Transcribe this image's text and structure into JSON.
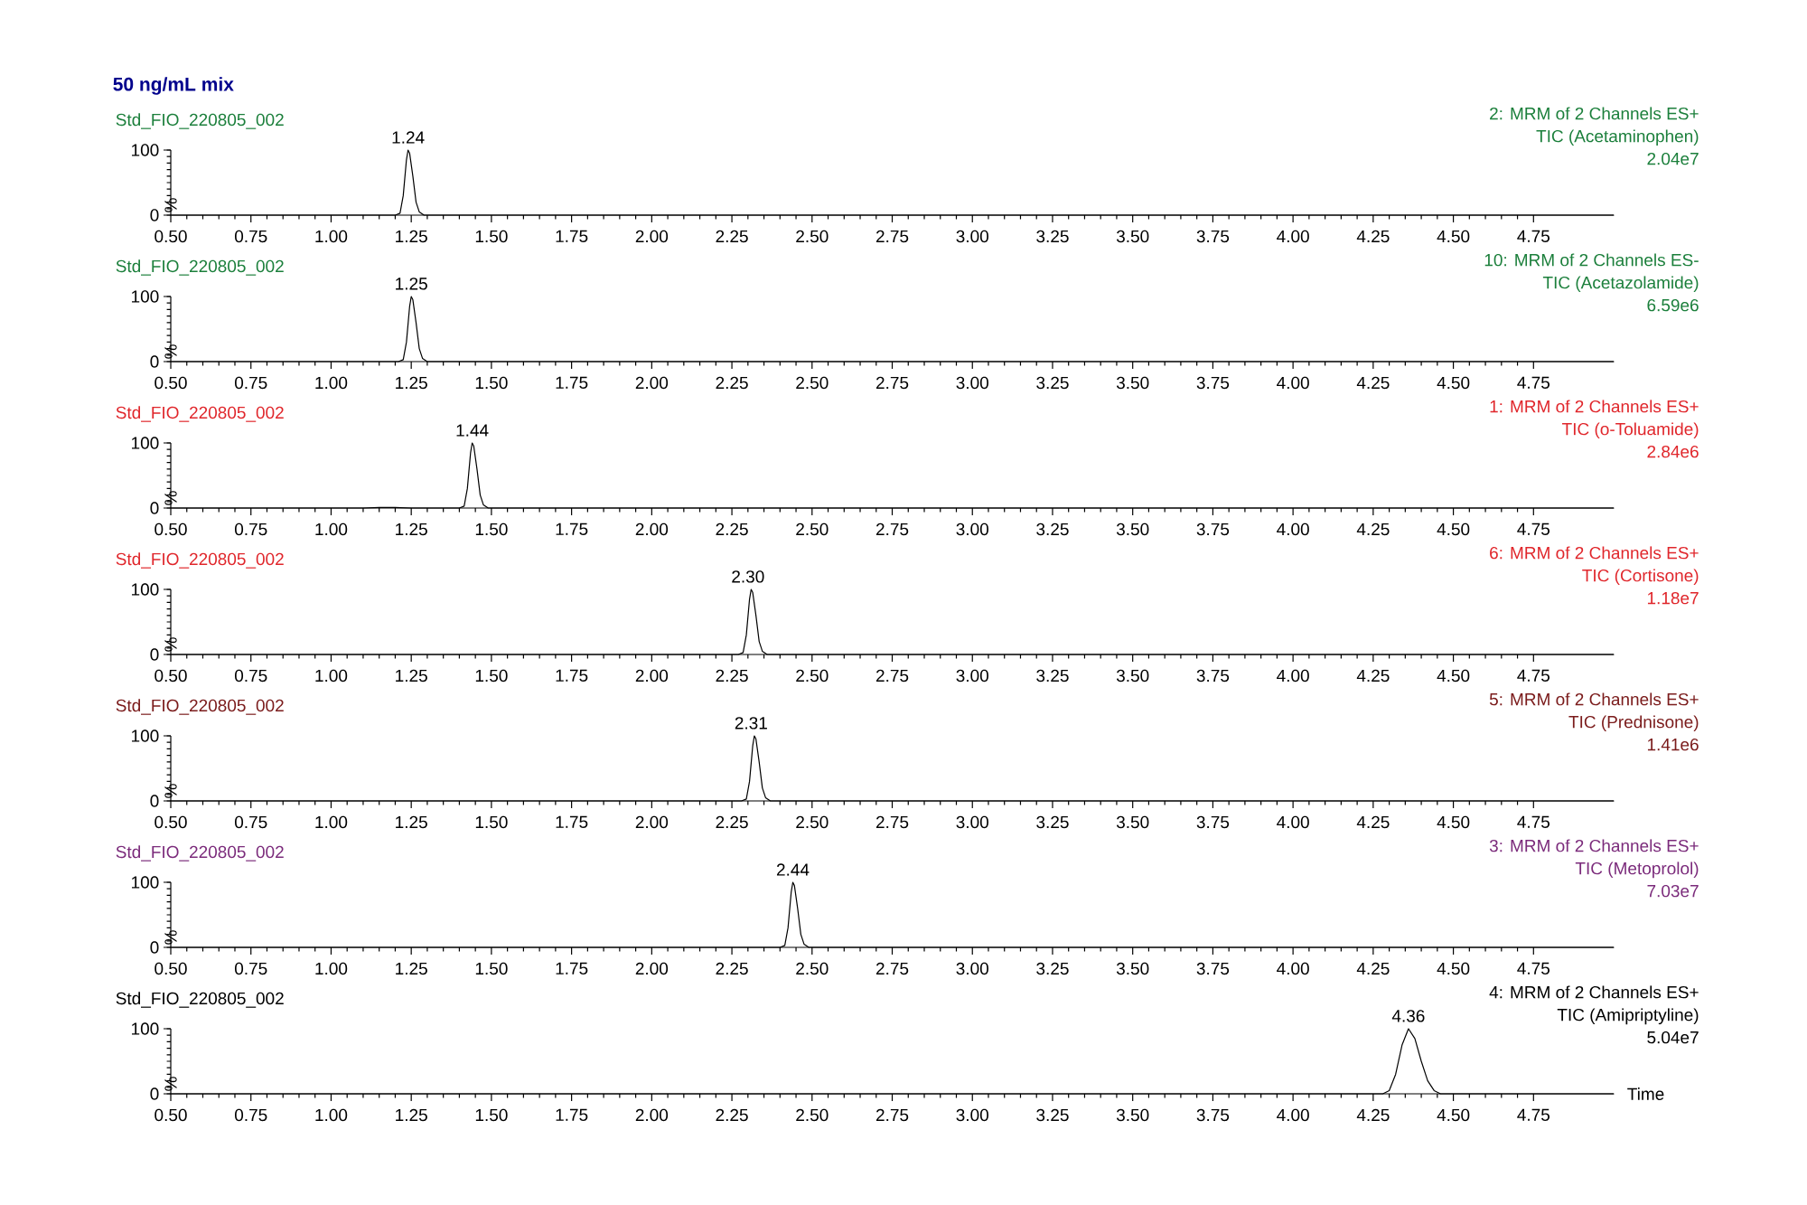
{
  "chart_data": [
    {
      "type": "line",
      "title": "50 ng/mL mix",
      "subtitle": "Std_FIO_220805_002",
      "ylabel": "%",
      "annotations": [
        "2: MRM of 2 Channels ES+",
        "TIC (Acetaminophen)",
        "2.04e7",
        {
          "text": "1.24",
          "x": 1.24,
          "y": 100
        }
      ],
      "x": [
        0.5,
        1.2,
        1.215,
        1.225,
        1.235,
        1.24,
        1.245,
        1.255,
        1.265,
        1.275,
        1.29,
        5.0
      ],
      "values": [
        0,
        0,
        3,
        30,
        85,
        100,
        95,
        60,
        20,
        5,
        0,
        0
      ],
      "color": "#000000",
      "marker": "none",
      "xlim": [
        0.5,
        5.0
      ],
      "ylim": [
        0,
        100
      ],
      "xticks": [
        {
          "value": 0.5,
          "label": "0.50"
        },
        {
          "value": 0.75,
          "label": "0.75"
        },
        {
          "value": 1.0,
          "label": "1.00"
        },
        {
          "value": 1.25,
          "label": "1.25"
        },
        {
          "value": 1.5,
          "label": "1.50"
        },
        {
          "value": 1.75,
          "label": "1.75"
        },
        {
          "value": 2.0,
          "label": "2.00"
        },
        {
          "value": 2.25,
          "label": "2.25"
        },
        {
          "value": 2.5,
          "label": "2.50"
        },
        {
          "value": 2.75,
          "label": "2.75"
        },
        {
          "value": 3.0,
          "label": "3.00"
        },
        {
          "value": 3.25,
          "label": "3.25"
        },
        {
          "value": 3.5,
          "label": "3.50"
        },
        {
          "value": 3.75,
          "label": "3.75"
        },
        {
          "value": 4.0,
          "label": "4.00"
        },
        {
          "value": 4.25,
          "label": "4.25"
        },
        {
          "value": 4.5,
          "label": "4.50"
        },
        {
          "value": 4.75,
          "label": "4.75"
        }
      ],
      "yticks": [
        0,
        100
      ]
    },
    {
      "type": "line",
      "subtitle": "Std_FIO_220805_002",
      "ylabel": "%",
      "annotations": [
        "10: MRM of 2 Channels ES-",
        "TIC (Acetazolamide)",
        "6.59e6",
        {
          "text": "1.25",
          "x": 1.25,
          "y": 100
        }
      ],
      "x": [
        0.5,
        1.21,
        1.225,
        1.235,
        1.245,
        1.25,
        1.255,
        1.265,
        1.275,
        1.285,
        1.3,
        5.0
      ],
      "values": [
        0,
        0,
        3,
        30,
        85,
        100,
        95,
        60,
        20,
        5,
        0,
        0
      ],
      "color": "#000000",
      "marker": "none",
      "xlim": [
        0.5,
        5.0
      ],
      "ylim": [
        0,
        100
      ],
      "xticks": [
        {
          "value": 0.5,
          "label": "0.50"
        },
        {
          "value": 0.75,
          "label": "0.75"
        },
        {
          "value": 1.0,
          "label": "1.00"
        },
        {
          "value": 1.25,
          "label": "1.25"
        },
        {
          "value": 1.5,
          "label": "1.50"
        },
        {
          "value": 1.75,
          "label": "1.75"
        },
        {
          "value": 2.0,
          "label": "2.00"
        },
        {
          "value": 2.25,
          "label": "2.25"
        },
        {
          "value": 2.5,
          "label": "2.50"
        },
        {
          "value": 2.75,
          "label": "2.75"
        },
        {
          "value": 3.0,
          "label": "3.00"
        },
        {
          "value": 3.25,
          "label": "3.25"
        },
        {
          "value": 3.5,
          "label": "3.50"
        },
        {
          "value": 3.75,
          "label": "3.75"
        },
        {
          "value": 4.0,
          "label": "4.00"
        },
        {
          "value": 4.25,
          "label": "4.25"
        },
        {
          "value": 4.5,
          "label": "4.50"
        },
        {
          "value": 4.75,
          "label": "4.75"
        }
      ],
      "yticks": [
        0,
        100
      ]
    },
    {
      "type": "line",
      "subtitle": "Std_FIO_220805_002",
      "ylabel": "%",
      "annotations": [
        "1: MRM of 2 Channels ES+",
        "TIC (o-Toluamide)",
        "2.84e6",
        {
          "text": "1.44",
          "x": 1.44,
          "y": 100
        }
      ],
      "x": [
        0.5,
        1.1,
        1.15,
        1.2,
        1.25,
        1.4,
        1.415,
        1.425,
        1.435,
        1.44,
        1.445,
        1.455,
        1.465,
        1.475,
        1.49,
        5.0
      ],
      "values": [
        0,
        0,
        1,
        1,
        0,
        0,
        3,
        30,
        85,
        100,
        95,
        60,
        20,
        5,
        0,
        0
      ],
      "color": "#000000",
      "marker": "none",
      "xlim": [
        0.5,
        5.0
      ],
      "ylim": [
        0,
        100
      ],
      "xticks": [
        {
          "value": 0.5,
          "label": "0.50"
        },
        {
          "value": 0.75,
          "label": "0.75"
        },
        {
          "value": 1.0,
          "label": "1.00"
        },
        {
          "value": 1.25,
          "label": "1.25"
        },
        {
          "value": 1.5,
          "label": "1.50"
        },
        {
          "value": 1.75,
          "label": "1.75"
        },
        {
          "value": 2.0,
          "label": "2.00"
        },
        {
          "value": 2.25,
          "label": "2.25"
        },
        {
          "value": 2.5,
          "label": "2.50"
        },
        {
          "value": 2.75,
          "label": "2.75"
        },
        {
          "value": 3.0,
          "label": "3.00"
        },
        {
          "value": 3.25,
          "label": "3.25"
        },
        {
          "value": 3.5,
          "label": "3.50"
        },
        {
          "value": 3.75,
          "label": "3.75"
        },
        {
          "value": 4.0,
          "label": "4.00"
        },
        {
          "value": 4.25,
          "label": "4.25"
        },
        {
          "value": 4.5,
          "label": "4.50"
        },
        {
          "value": 4.75,
          "label": "4.75"
        }
      ],
      "yticks": [
        0,
        100
      ]
    },
    {
      "type": "line",
      "subtitle": "Std_FIO_220805_002",
      "ylabel": "%",
      "annotations": [
        "6: MRM of 2 Channels ES+",
        "TIC (Cortisone)",
        "1.18e7",
        {
          "text": "2.30",
          "x": 2.3,
          "y": 100
        }
      ],
      "x": [
        0.5,
        2.27,
        2.285,
        2.295,
        2.305,
        2.31,
        2.315,
        2.325,
        2.335,
        2.345,
        2.36,
        5.0
      ],
      "values": [
        0,
        0,
        3,
        30,
        85,
        100,
        95,
        60,
        20,
        5,
        0,
        0
      ],
      "color": "#000000",
      "marker": "none",
      "xlim": [
        0.5,
        5.0
      ],
      "ylim": [
        0,
        100
      ],
      "xticks": [
        {
          "value": 0.5,
          "label": "0.50"
        },
        {
          "value": 0.75,
          "label": "0.75"
        },
        {
          "value": 1.0,
          "label": "1.00"
        },
        {
          "value": 1.25,
          "label": "1.25"
        },
        {
          "value": 1.5,
          "label": "1.50"
        },
        {
          "value": 1.75,
          "label": "1.75"
        },
        {
          "value": 2.0,
          "label": "2.00"
        },
        {
          "value": 2.25,
          "label": "2.25"
        },
        {
          "value": 2.5,
          "label": "2.50"
        },
        {
          "value": 2.75,
          "label": "2.75"
        },
        {
          "value": 3.0,
          "label": "3.00"
        },
        {
          "value": 3.25,
          "label": "3.25"
        },
        {
          "value": 3.5,
          "label": "3.50"
        },
        {
          "value": 3.75,
          "label": "3.75"
        },
        {
          "value": 4.0,
          "label": "4.00"
        },
        {
          "value": 4.25,
          "label": "4.25"
        },
        {
          "value": 4.5,
          "label": "4.50"
        },
        {
          "value": 4.75,
          "label": "4.75"
        }
      ],
      "yticks": [
        0,
        100
      ]
    },
    {
      "type": "line",
      "subtitle": "Std_FIO_220805_002",
      "ylabel": "%",
      "annotations": [
        "5: MRM of 2 Channels ES+",
        "TIC (Prednisone)",
        "1.41e6",
        {
          "text": "2.31",
          "x": 2.31,
          "y": 100
        }
      ],
      "x": [
        0.5,
        2.28,
        2.295,
        2.305,
        2.315,
        2.32,
        2.325,
        2.335,
        2.345,
        2.355,
        2.37,
        5.0
      ],
      "values": [
        0,
        0,
        3,
        30,
        85,
        100,
        95,
        60,
        20,
        5,
        0,
        0
      ],
      "color": "#000000",
      "marker": "none",
      "xlim": [
        0.5,
        5.0
      ],
      "ylim": [
        0,
        100
      ],
      "xticks": [
        {
          "value": 0.5,
          "label": "0.50"
        },
        {
          "value": 0.75,
          "label": "0.75"
        },
        {
          "value": 1.0,
          "label": "1.00"
        },
        {
          "value": 1.25,
          "label": "1.25"
        },
        {
          "value": 1.5,
          "label": "1.50"
        },
        {
          "value": 1.75,
          "label": "1.75"
        },
        {
          "value": 2.0,
          "label": "2.00"
        },
        {
          "value": 2.25,
          "label": "2.25"
        },
        {
          "value": 2.5,
          "label": "2.50"
        },
        {
          "value": 2.75,
          "label": "2.75"
        },
        {
          "value": 3.0,
          "label": "3.00"
        },
        {
          "value": 3.25,
          "label": "3.25"
        },
        {
          "value": 3.5,
          "label": "3.50"
        },
        {
          "value": 3.75,
          "label": "3.75"
        },
        {
          "value": 4.0,
          "label": "4.00"
        },
        {
          "value": 4.25,
          "label": "4.25"
        },
        {
          "value": 4.5,
          "label": "4.50"
        },
        {
          "value": 4.75,
          "label": "4.75"
        }
      ],
      "yticks": [
        0,
        100
      ]
    },
    {
      "type": "line",
      "subtitle": "Std_FIO_220805_002",
      "ylabel": "%",
      "annotations": [
        "3: MRM of 2 Channels ES+",
        "TIC (Metoprolol)",
        "7.03e7",
        {
          "text": "2.44",
          "x": 2.44,
          "y": 100
        }
      ],
      "x": [
        0.5,
        2.4,
        2.415,
        2.425,
        2.435,
        2.44,
        2.445,
        2.455,
        2.465,
        2.475,
        2.49,
        5.0
      ],
      "values": [
        0,
        0,
        3,
        30,
        85,
        100,
        95,
        60,
        20,
        5,
        0,
        0
      ],
      "color": "#000000",
      "marker": "none",
      "xlim": [
        0.5,
        5.0
      ],
      "ylim": [
        0,
        100
      ],
      "xticks": [
        {
          "value": 0.5,
          "label": "0.50"
        },
        {
          "value": 0.75,
          "label": "0.75"
        },
        {
          "value": 1.0,
          "label": "1.00"
        },
        {
          "value": 1.25,
          "label": "1.25"
        },
        {
          "value": 1.5,
          "label": "1.50"
        },
        {
          "value": 1.75,
          "label": "1.75"
        },
        {
          "value": 2.0,
          "label": "2.00"
        },
        {
          "value": 2.25,
          "label": "2.25"
        },
        {
          "value": 2.5,
          "label": "2.50"
        },
        {
          "value": 2.75,
          "label": "2.75"
        },
        {
          "value": 3.0,
          "label": "3.00"
        },
        {
          "value": 3.25,
          "label": "3.25"
        },
        {
          "value": 3.5,
          "label": "3.50"
        },
        {
          "value": 3.75,
          "label": "3.75"
        },
        {
          "value": 4.0,
          "label": "4.00"
        },
        {
          "value": 4.25,
          "label": "4.25"
        },
        {
          "value": 4.5,
          "label": "4.50"
        },
        {
          "value": 4.75,
          "label": "4.75"
        }
      ],
      "yticks": [
        0,
        100
      ]
    },
    {
      "type": "line",
      "subtitle": "Std_FIO_220805_002",
      "ylabel": "%",
      "xlabel": "Time",
      "annotations": [
        "4: MRM of 2 Channels ES+",
        "TIC (Amipriptyline)",
        "5.04e7",
        {
          "text": "4.36",
          "x": 4.36,
          "y": 100
        }
      ],
      "x": [
        0.5,
        4.28,
        4.3,
        4.32,
        4.34,
        4.36,
        4.38,
        4.4,
        4.42,
        4.44,
        4.46,
        5.0
      ],
      "values": [
        0,
        0,
        5,
        30,
        75,
        100,
        85,
        50,
        20,
        5,
        0,
        0
      ],
      "color": "#000000",
      "marker": "none",
      "xlim": [
        0.5,
        5.0
      ],
      "ylim": [
        0,
        100
      ],
      "xticks": [
        {
          "value": 0.5,
          "label": "0.50"
        },
        {
          "value": 0.75,
          "label": "0.75"
        },
        {
          "value": 1.0,
          "label": "1.00"
        },
        {
          "value": 1.25,
          "label": "1.25"
        },
        {
          "value": 1.5,
          "label": "1.50"
        },
        {
          "value": 1.75,
          "label": "1.75"
        },
        {
          "value": 2.0,
          "label": "2.00"
        },
        {
          "value": 2.25,
          "label": "2.25"
        },
        {
          "value": 2.5,
          "label": "2.50"
        },
        {
          "value": 2.75,
          "label": "2.75"
        },
        {
          "value": 3.0,
          "label": "3.00"
        },
        {
          "value": 3.25,
          "label": "3.25"
        },
        {
          "value": 3.5,
          "label": "3.50"
        },
        {
          "value": 3.75,
          "label": "3.75"
        },
        {
          "value": 4.0,
          "label": "4.00"
        },
        {
          "value": 4.25,
          "label": "4.25"
        },
        {
          "value": 4.5,
          "label": "4.50"
        },
        {
          "value": 4.75,
          "label": "4.75"
        }
      ],
      "yticks": [
        0,
        100
      ]
    }
  ]
}
